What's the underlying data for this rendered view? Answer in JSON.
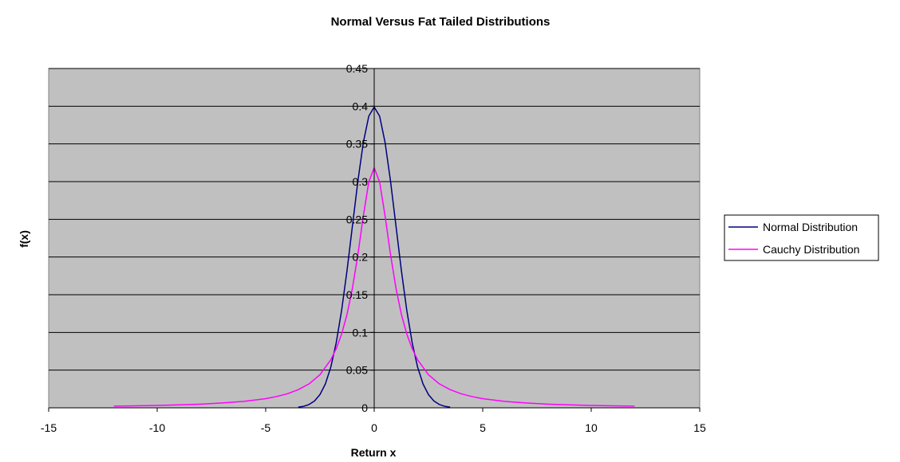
{
  "colors": {
    "plot_background": "#c0c0c0",
    "gridline": "#000000",
    "normal_series": "#000080",
    "cauchy_series": "#ff00ff"
  },
  "chart_data": {
    "type": "line",
    "title": "Normal Versus Fat Tailed Distributions",
    "xlabel": "Return x",
    "ylabel": "f(x)",
    "xlim": [
      -15,
      15
    ],
    "ylim": [
      0,
      0.45
    ],
    "x_ticks": [
      -15,
      -10,
      -5,
      0,
      5,
      10,
      15
    ],
    "x_tick_labels": [
      "-15",
      "-10",
      "-5",
      "0",
      "5",
      "10",
      "15"
    ],
    "y_ticks": [
      0,
      0.05,
      0.1,
      0.15,
      0.2,
      0.25,
      0.3,
      0.35,
      0.4,
      0.45
    ],
    "y_tick_labels": [
      "0",
      "0.05",
      "0.1",
      "0.15",
      "0.2",
      "0.25",
      "0.3",
      "0.35",
      "0.4",
      "0.45"
    ],
    "grid": "horizontal",
    "legend_position": "right",
    "series": [
      {
        "name": "Normal Distribution",
        "x": [
          -3.5,
          -3.25,
          -3,
          -2.75,
          -2.5,
          -2.25,
          -2,
          -1.75,
          -1.5,
          -1.25,
          -1,
          -0.75,
          -0.5,
          -0.25,
          0,
          0.25,
          0.5,
          0.75,
          1,
          1.25,
          1.5,
          1.75,
          2,
          2.25,
          2.5,
          2.75,
          3,
          3.25,
          3.5
        ],
        "y": [
          0.0009,
          0.002,
          0.0044,
          0.0091,
          0.0175,
          0.0317,
          0.054,
          0.0863,
          0.1295,
          0.1826,
          0.242,
          0.3011,
          0.3521,
          0.3867,
          0.3989,
          0.3867,
          0.3521,
          0.3011,
          0.242,
          0.1826,
          0.1295,
          0.0863,
          0.054,
          0.0317,
          0.0175,
          0.0091,
          0.0044,
          0.002,
          0.0009
        ]
      },
      {
        "name": "Cauchy Distribution",
        "x": [
          -12,
          -11,
          -10,
          -9,
          -8,
          -7,
          -6,
          -5,
          -4.5,
          -4,
          -3.5,
          -3,
          -2.5,
          -2,
          -1.75,
          -1.5,
          -1.25,
          -1,
          -0.75,
          -0.5,
          -0.25,
          0,
          0.25,
          0.5,
          0.75,
          1,
          1.25,
          1.5,
          1.75,
          2,
          2.5,
          3,
          3.5,
          4,
          4.5,
          5,
          6,
          7,
          8,
          9,
          10,
          11,
          12
        ],
        "y": [
          0.0022,
          0.0026,
          0.0032,
          0.0039,
          0.0049,
          0.0064,
          0.0086,
          0.0122,
          0.015,
          0.0187,
          0.0241,
          0.0318,
          0.0439,
          0.0637,
          0.0785,
          0.0979,
          0.1242,
          0.1592,
          0.2037,
          0.2546,
          0.2996,
          0.3183,
          0.2996,
          0.2546,
          0.2037,
          0.1592,
          0.1242,
          0.0979,
          0.0785,
          0.0637,
          0.0439,
          0.0318,
          0.0241,
          0.0187,
          0.015,
          0.0122,
          0.0086,
          0.0064,
          0.0049,
          0.0039,
          0.0032,
          0.0026,
          0.0022
        ]
      }
    ]
  }
}
